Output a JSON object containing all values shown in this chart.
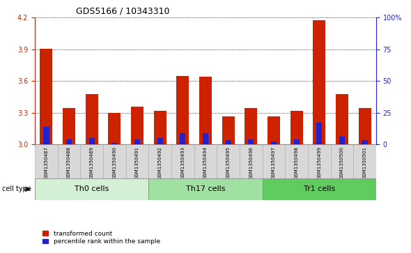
{
  "title": "GDS5166 / 10343310",
  "samples": [
    "GSM1350487",
    "GSM1350488",
    "GSM1350489",
    "GSM1350490",
    "GSM1350491",
    "GSM1350492",
    "GSM1350493",
    "GSM1350494",
    "GSM1350495",
    "GSM1350496",
    "GSM1350497",
    "GSM1350498",
    "GSM1350499",
    "GSM1350500",
    "GSM1350501"
  ],
  "transformed_count": [
    3.905,
    3.345,
    3.475,
    3.3,
    3.355,
    3.315,
    3.645,
    3.64,
    3.265,
    3.345,
    3.265,
    3.32,
    4.175,
    3.475,
    3.34
  ],
  "percentile_rank_pct": [
    14,
    4,
    5,
    1,
    4,
    5,
    9,
    9,
    3,
    4,
    2,
    4,
    17,
    6,
    3
  ],
  "ylim_left": [
    3.0,
    4.2
  ],
  "ylim_right": [
    0,
    100
  ],
  "yticks_left": [
    3.0,
    3.3,
    3.6,
    3.9,
    4.2
  ],
  "yticks_right": [
    0,
    25,
    50,
    75,
    100
  ],
  "ytick_labels_right": [
    "0",
    "25",
    "50",
    "75",
    "100%"
  ],
  "groups": [
    {
      "name": "Th0 cells",
      "start": 0,
      "end": 4,
      "color": "#d4f0d4"
    },
    {
      "name": "Th17 cells",
      "start": 5,
      "end": 9,
      "color": "#a0e0a0"
    },
    {
      "name": "Tr1 cells",
      "start": 10,
      "end": 14,
      "color": "#60cc60"
    }
  ],
  "bar_color_red": "#cc2200",
  "bar_color_blue": "#2222cc",
  "bar_width": 0.55,
  "blue_bar_width": 0.25,
  "base_value": 3.0,
  "cell_type_label": "cell type",
  "legend_red": "transformed count",
  "legend_blue": "percentile rank within the sample",
  "title_fontsize": 9,
  "tick_fontsize": 7,
  "sample_fontsize": 5,
  "group_fontsize": 8
}
